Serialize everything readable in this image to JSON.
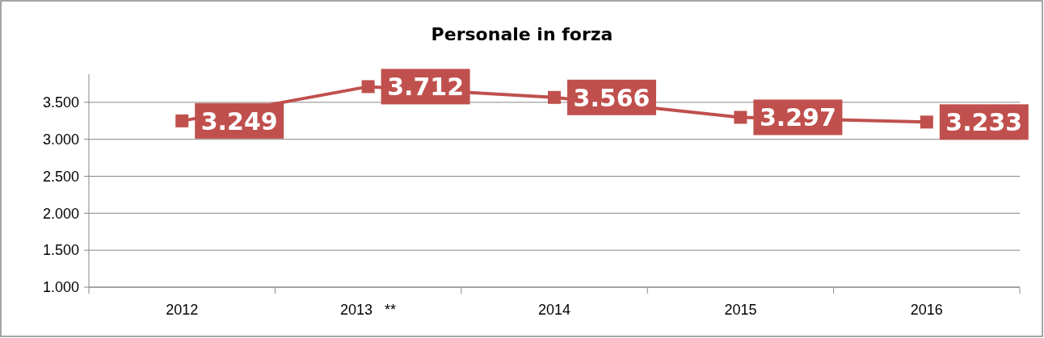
{
  "chart_data": {
    "type": "line",
    "title": "Personale in forza",
    "categories": [
      "2012",
      "2013   **",
      "2014",
      "2015",
      "2016"
    ],
    "series": [
      {
        "color": "#c0504d",
        "values": [
          3249,
          3712,
          3566,
          3297,
          3233
        ],
        "value_labels": [
          "3.249",
          "3.712",
          "3.566",
          "3.297",
          "3.233"
        ]
      }
    ],
    "ylim": [
      1000,
      3880
    ],
    "yticks": [
      {
        "value": 1000,
        "label": "1.000"
      },
      {
        "value": 1500,
        "label": "1.500"
      },
      {
        "value": 2000,
        "label": "2.000"
      },
      {
        "value": 2500,
        "label": "2.500"
      },
      {
        "value": 3000,
        "label": "3.000"
      },
      {
        "value": 3500,
        "label": "3.500"
      }
    ],
    "grid": "y",
    "marker": "square",
    "line_style": "solid"
  }
}
